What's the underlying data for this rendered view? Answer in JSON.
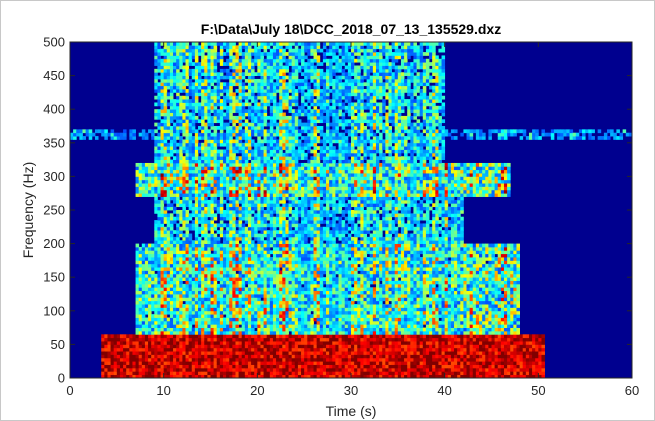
{
  "chart_data": {
    "type": "heatmap",
    "title": "F:\\Data\\July 18\\DCC_2018_07_13_135529.dxz",
    "xlabel": "Time (s)",
    "ylabel": "Frequency (Hz)",
    "xlim": [
      0,
      60
    ],
    "ylim": [
      0,
      500
    ],
    "x_ticks": [
      "0",
      "10",
      "20",
      "30",
      "40",
      "50",
      "60"
    ],
    "y_ticks": [
      "0",
      "50",
      "100",
      "150",
      "200",
      "250",
      "300",
      "350",
      "400",
      "450",
      "500"
    ],
    "grid": false,
    "colormap": "jet",
    "colors": {
      "background": "#00008f",
      "low": "#0a1fb0",
      "high": "#800000"
    },
    "regions": [
      {
        "t": [
          3.5,
          50.5
        ],
        "f": [
          0,
          65
        ],
        "intensity": 0.95
      },
      {
        "t": [
          9,
          44
        ],
        "f": [
          0,
          40
        ],
        "intensity": 1.0
      },
      {
        "t": [
          7,
          48
        ],
        "f": [
          65,
          200
        ],
        "intensity": 0.55
      },
      {
        "t": [
          9,
          42
        ],
        "f": [
          200,
          270
        ],
        "intensity": 0.45
      },
      {
        "t": [
          7,
          47
        ],
        "f": [
          270,
          320
        ],
        "intensity": 0.6
      },
      {
        "t": [
          9,
          40
        ],
        "f": [
          320,
          500
        ],
        "intensity": 0.45
      },
      {
        "t": [
          0,
          60
        ],
        "f": [
          355,
          372
        ],
        "intensity": 0.3
      }
    ]
  }
}
